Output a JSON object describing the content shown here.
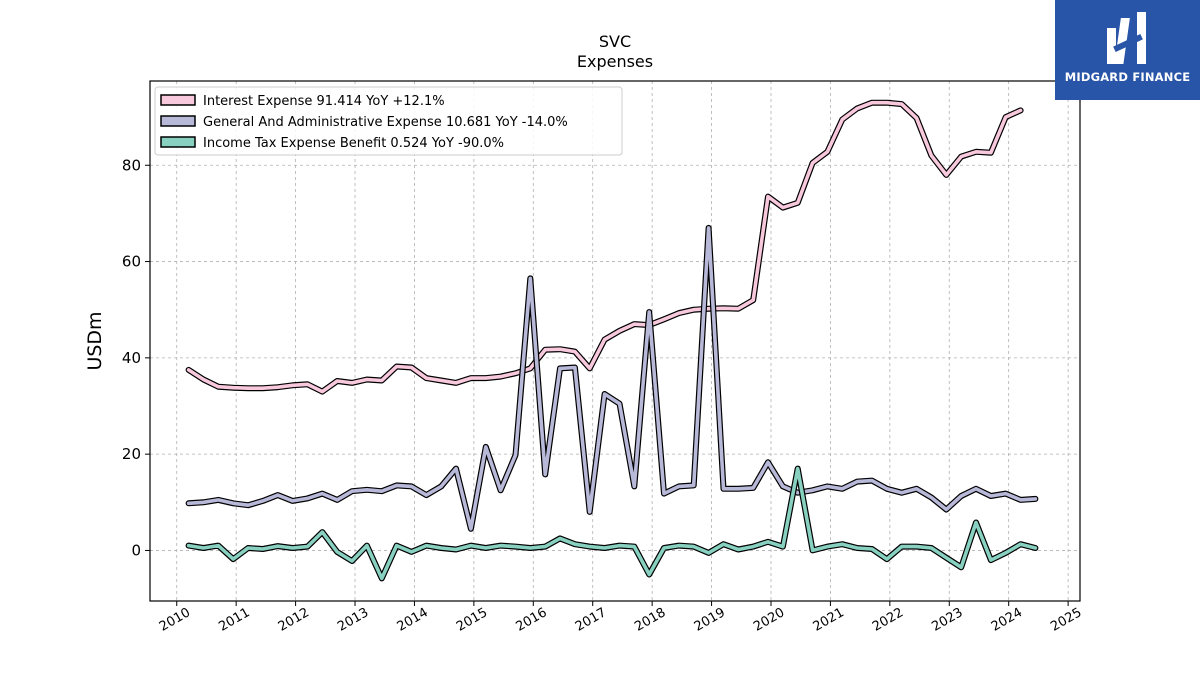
{
  "chart_data": {
    "type": "line",
    "title": "SVC",
    "subtitle": "Expenses",
    "ylabel": "USDm",
    "xlabel": "",
    "xlim": [
      2009.55,
      2025.2
    ],
    "ylim": [
      -10.5,
      97.5
    ],
    "x_ticks": [
      2010,
      2011,
      2012,
      2013,
      2014,
      2015,
      2016,
      2017,
      2018,
      2019,
      2020,
      2021,
      2022,
      2023,
      2024,
      2025
    ],
    "x_tick_labels": [
      "2010",
      "2011",
      "2012",
      "2013",
      "2014",
      "2015",
      "2016",
      "2017",
      "2018",
      "2019",
      "2020",
      "2021",
      "2022",
      "2023",
      "2024",
      "2025"
    ],
    "y_ticks": [
      0,
      20,
      40,
      60,
      80
    ],
    "y_tick_labels": [
      "0",
      "20",
      "40",
      "60",
      "80"
    ],
    "grid": true,
    "legend_position": "top-left",
    "series": [
      {
        "name": "Interest Expense",
        "legend_label": "Interest Expense  91.414 YoY +12.1%",
        "color": "#f8c8dc",
        "points": [
          [
            2010.2,
            37.5
          ],
          [
            2010.45,
            35.5
          ],
          [
            2010.7,
            34.0
          ],
          [
            2010.95,
            33.8
          ],
          [
            2011.2,
            33.7
          ],
          [
            2011.45,
            33.7
          ],
          [
            2011.7,
            33.9
          ],
          [
            2011.95,
            34.3
          ],
          [
            2012.2,
            34.5
          ],
          [
            2012.45,
            33.0
          ],
          [
            2012.7,
            35.2
          ],
          [
            2012.95,
            34.8
          ],
          [
            2013.2,
            35.5
          ],
          [
            2013.45,
            35.3
          ],
          [
            2013.7,
            38.2
          ],
          [
            2013.95,
            38.0
          ],
          [
            2014.2,
            35.8
          ],
          [
            2014.45,
            35.3
          ],
          [
            2014.7,
            34.8
          ],
          [
            2014.95,
            35.8
          ],
          [
            2015.2,
            35.8
          ],
          [
            2015.45,
            36.1
          ],
          [
            2015.7,
            36.8
          ],
          [
            2015.95,
            37.8
          ],
          [
            2016.2,
            41.7
          ],
          [
            2016.45,
            41.8
          ],
          [
            2016.7,
            41.3
          ],
          [
            2016.95,
            37.8
          ],
          [
            2017.2,
            43.8
          ],
          [
            2017.45,
            45.6
          ],
          [
            2017.7,
            47.0
          ],
          [
            2017.95,
            46.8
          ],
          [
            2018.2,
            48.0
          ],
          [
            2018.45,
            49.3
          ],
          [
            2018.7,
            50.0
          ],
          [
            2018.95,
            50.2
          ],
          [
            2019.2,
            50.3
          ],
          [
            2019.45,
            50.2
          ],
          [
            2019.7,
            52.0
          ],
          [
            2019.95,
            73.5
          ],
          [
            2020.2,
            71.2
          ],
          [
            2020.45,
            72.2
          ],
          [
            2020.7,
            80.5
          ],
          [
            2020.95,
            82.8
          ],
          [
            2021.2,
            89.5
          ],
          [
            2021.45,
            91.8
          ],
          [
            2021.7,
            93.0
          ],
          [
            2021.95,
            93.0
          ],
          [
            2022.2,
            92.7
          ],
          [
            2022.45,
            89.8
          ],
          [
            2022.7,
            82.0
          ],
          [
            2022.95,
            78.0
          ],
          [
            2023.2,
            81.8
          ],
          [
            2023.45,
            82.8
          ],
          [
            2023.7,
            82.6
          ],
          [
            2023.95,
            90.0
          ],
          [
            2024.2,
            91.4
          ]
        ]
      },
      {
        "name": "General And Administrative Expense",
        "legend_label": "General And Administrative Expense  10.681 YoY -14.0%",
        "color": "#b8b8d8",
        "points": [
          [
            2010.2,
            9.8
          ],
          [
            2010.45,
            10.0
          ],
          [
            2010.7,
            10.5
          ],
          [
            2010.95,
            9.8
          ],
          [
            2011.2,
            9.4
          ],
          [
            2011.45,
            10.3
          ],
          [
            2011.7,
            11.5
          ],
          [
            2011.95,
            10.3
          ],
          [
            2012.2,
            10.8
          ],
          [
            2012.45,
            11.8
          ],
          [
            2012.7,
            10.5
          ],
          [
            2012.95,
            12.3
          ],
          [
            2013.2,
            12.6
          ],
          [
            2013.45,
            12.3
          ],
          [
            2013.7,
            13.5
          ],
          [
            2013.95,
            13.3
          ],
          [
            2014.2,
            11.5
          ],
          [
            2014.45,
            13.3
          ],
          [
            2014.7,
            17.0
          ],
          [
            2014.95,
            4.5
          ],
          [
            2015.2,
            21.5
          ],
          [
            2015.45,
            12.5
          ],
          [
            2015.7,
            19.8
          ],
          [
            2015.95,
            56.5
          ],
          [
            2016.2,
            15.8
          ],
          [
            2016.45,
            37.8
          ],
          [
            2016.7,
            38.0
          ],
          [
            2016.95,
            8.0
          ],
          [
            2017.2,
            32.5
          ],
          [
            2017.45,
            30.5
          ],
          [
            2017.7,
            13.3
          ],
          [
            2017.95,
            49.5
          ],
          [
            2018.2,
            11.8
          ],
          [
            2018.45,
            13.3
          ],
          [
            2018.7,
            13.5
          ],
          [
            2018.95,
            67.0
          ],
          [
            2019.2,
            12.8
          ],
          [
            2019.45,
            12.8
          ],
          [
            2019.7,
            13.0
          ],
          [
            2019.95,
            18.3
          ],
          [
            2020.2,
            13.3
          ],
          [
            2020.45,
            12.0
          ],
          [
            2020.7,
            12.5
          ],
          [
            2020.95,
            13.3
          ],
          [
            2021.2,
            12.8
          ],
          [
            2021.45,
            14.3
          ],
          [
            2021.7,
            14.5
          ],
          [
            2021.95,
            12.8
          ],
          [
            2022.2,
            12.0
          ],
          [
            2022.45,
            12.8
          ],
          [
            2022.7,
            11.0
          ],
          [
            2022.95,
            8.5
          ],
          [
            2023.2,
            11.3
          ],
          [
            2023.45,
            12.8
          ],
          [
            2023.7,
            11.3
          ],
          [
            2023.95,
            11.8
          ],
          [
            2024.2,
            10.5
          ],
          [
            2024.45,
            10.7
          ]
        ]
      },
      {
        "name": "Income Tax Expense Benefit",
        "legend_label": "Income Tax Expense Benefit  0.524 YoY -90.0%",
        "color": "#88d0c0",
        "points": [
          [
            2010.2,
            1.0
          ],
          [
            2010.45,
            0.5
          ],
          [
            2010.7,
            1.0
          ],
          [
            2010.95,
            -1.8
          ],
          [
            2011.2,
            0.5
          ],
          [
            2011.45,
            0.3
          ],
          [
            2011.7,
            0.9
          ],
          [
            2011.95,
            0.5
          ],
          [
            2012.2,
            0.8
          ],
          [
            2012.45,
            3.8
          ],
          [
            2012.7,
            -0.3
          ],
          [
            2012.95,
            -2.2
          ],
          [
            2013.2,
            1.0
          ],
          [
            2013.45,
            -5.8
          ],
          [
            2013.7,
            1.0
          ],
          [
            2013.95,
            -0.3
          ],
          [
            2014.2,
            1.0
          ],
          [
            2014.45,
            0.5
          ],
          [
            2014.7,
            0.2
          ],
          [
            2014.95,
            1.0
          ],
          [
            2015.2,
            0.5
          ],
          [
            2015.45,
            1.0
          ],
          [
            2015.7,
            0.8
          ],
          [
            2015.95,
            0.5
          ],
          [
            2016.2,
            0.8
          ],
          [
            2016.45,
            2.5
          ],
          [
            2016.7,
            1.3
          ],
          [
            2016.95,
            0.8
          ],
          [
            2017.2,
            0.5
          ],
          [
            2017.45,
            1.0
          ],
          [
            2017.7,
            0.8
          ],
          [
            2017.95,
            -5.0
          ],
          [
            2018.2,
            0.5
          ],
          [
            2018.45,
            1.0
          ],
          [
            2018.7,
            0.8
          ],
          [
            2018.95,
            -0.5
          ],
          [
            2019.2,
            1.3
          ],
          [
            2019.45,
            0.2
          ],
          [
            2019.7,
            0.8
          ],
          [
            2019.95,
            1.8
          ],
          [
            2020.2,
            0.8
          ],
          [
            2020.45,
            17.0
          ],
          [
            2020.7,
            0.0
          ],
          [
            2020.95,
            0.8
          ],
          [
            2021.2,
            1.3
          ],
          [
            2021.45,
            0.5
          ],
          [
            2021.7,
            0.3
          ],
          [
            2021.95,
            -1.8
          ],
          [
            2022.2,
            0.8
          ],
          [
            2022.45,
            0.8
          ],
          [
            2022.7,
            0.5
          ],
          [
            2022.95,
            -1.5
          ],
          [
            2023.2,
            -3.5
          ],
          [
            2023.45,
            5.8
          ],
          [
            2023.7,
            -2.0
          ],
          [
            2023.95,
            -0.5
          ],
          [
            2024.2,
            1.3
          ],
          [
            2024.45,
            0.5
          ]
        ]
      }
    ]
  },
  "logo": {
    "text": "MIDGARD FINANCE",
    "color": "#2855a8"
  }
}
